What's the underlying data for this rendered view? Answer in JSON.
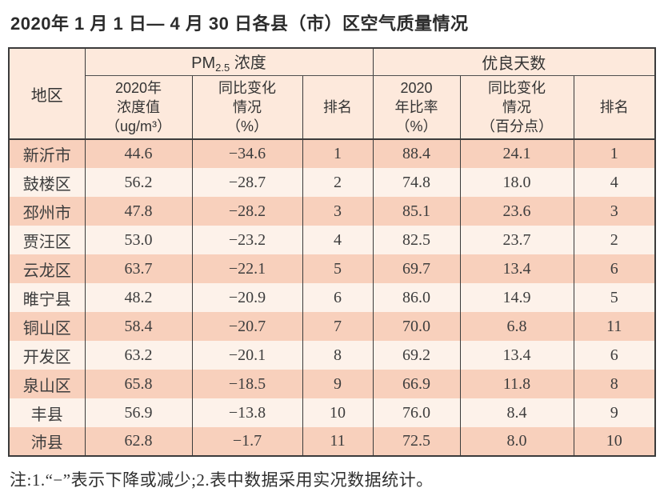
{
  "title": "2020年 1 月 1 日— 4 月 30 日各县（市）区空气质量情况",
  "table": {
    "corner_header": "地区",
    "groups": {
      "pm": {
        "prefix": "PM",
        "sub": "2.5",
        "suffix": " 浓度"
      },
      "good_days": "优良天数"
    },
    "sub_headers": [
      "2020年\n浓度值\n（ug/m³）",
      "同比变化\n情况\n（%）",
      "排名",
      "2020\n年比率\n（%）",
      "同比变化\n情况\n（百分点）",
      "排名"
    ],
    "rows": [
      {
        "region": "新沂市",
        "cells": [
          "44.6",
          "−34.6",
          "1",
          "88.4",
          "24.1",
          "1"
        ]
      },
      {
        "region": "鼓楼区",
        "cells": [
          "56.2",
          "−28.7",
          "2",
          "74.8",
          "18.0",
          "4"
        ]
      },
      {
        "region": "邳州市",
        "cells": [
          "47.8",
          "−28.2",
          "3",
          "85.1",
          "23.6",
          "3"
        ]
      },
      {
        "region": "贾汪区",
        "cells": [
          "53.0",
          "−23.2",
          "4",
          "82.5",
          "23.7",
          "2"
        ]
      },
      {
        "region": "云龙区",
        "cells": [
          "63.7",
          "−22.1",
          "5",
          "69.7",
          "13.4",
          "6"
        ]
      },
      {
        "region": "睢宁县",
        "cells": [
          "48.2",
          "−20.9",
          "6",
          "86.0",
          "14.9",
          "5"
        ]
      },
      {
        "region": "铜山区",
        "cells": [
          "58.4",
          "−20.7",
          "7",
          "70.0",
          "6.8",
          "11"
        ]
      },
      {
        "region": "开发区",
        "cells": [
          "63.2",
          "−20.1",
          "8",
          "69.2",
          "13.4",
          "6"
        ]
      },
      {
        "region": "泉山区",
        "cells": [
          "65.8",
          "−18.5",
          "9",
          "66.9",
          "11.8",
          "8"
        ]
      },
      {
        "region": "丰县",
        "cells": [
          "56.9",
          "−13.8",
          "10",
          "76.0",
          "8.4",
          "9"
        ]
      },
      {
        "region": "沛县",
        "cells": [
          "62.8",
          "−1.7",
          "11",
          "72.5",
          "8.0",
          "10"
        ]
      }
    ]
  },
  "note": "注:1.“−”表示下降或减少;2.表中数据采用实况数据统计。",
  "colors": {
    "row_salmon": "#f8d0bc",
    "row_light": "#fdf2ea",
    "header_bg": "#fde9dc",
    "border": "#3b3b3b"
  }
}
